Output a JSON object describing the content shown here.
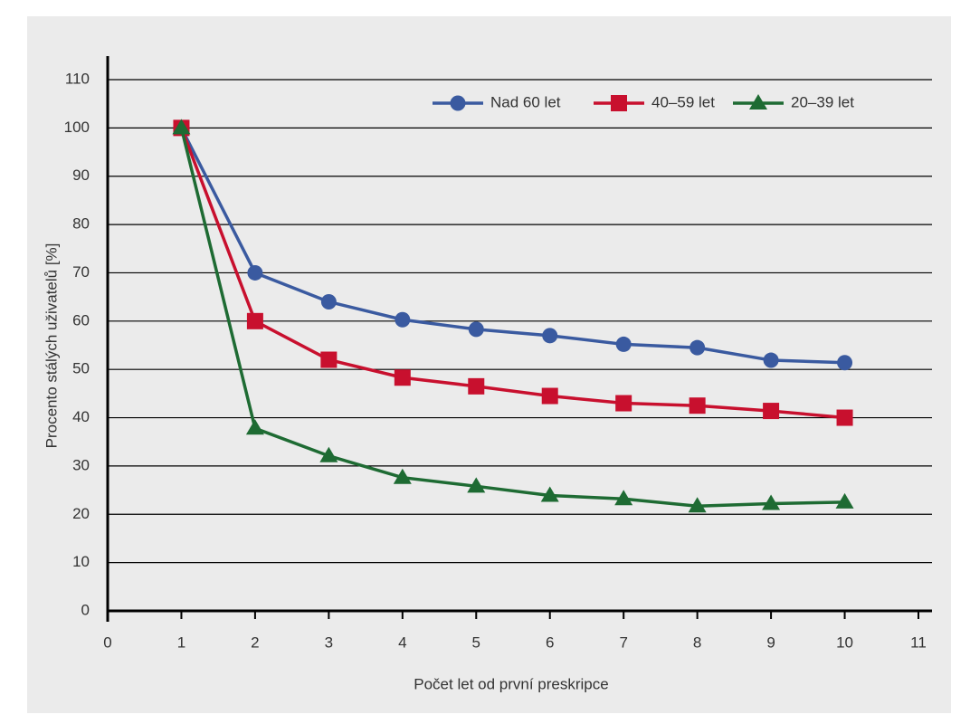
{
  "chart_data": {
    "type": "line",
    "y_label": "Procento stálých uživatelů [%]",
    "x_label": "Počet let od první preskripce",
    "x": [
      1,
      2,
      3,
      4,
      5,
      6,
      7,
      8,
      9,
      10
    ],
    "series": [
      {
        "name": "Nad 60 let",
        "color": "#3a5aa0",
        "marker": "circle",
        "values": [
          100,
          70,
          64,
          60.3,
          58.3,
          57,
          55.2,
          54.5,
          51.9,
          51.4
        ]
      },
      {
        "name": "40–59 let",
        "color": "#c8102e",
        "marker": "square",
        "values": [
          100,
          60,
          52,
          48.3,
          46.5,
          44.5,
          43,
          42.5,
          41.4,
          40
        ]
      },
      {
        "name": "20–39 let",
        "color": "#1e6b33",
        "marker": "triangle",
        "values": [
          100,
          37.8,
          32.1,
          27.6,
          25.8,
          23.9,
          23.2,
          21.7,
          22.2,
          22.5
        ]
      }
    ],
    "xlim": [
      0,
      11
    ],
    "xticks": [
      0,
      1,
      2,
      3,
      4,
      5,
      6,
      7,
      8,
      9,
      10,
      11
    ],
    "ylim": [
      0,
      110
    ],
    "yticks": [
      0,
      10,
      20,
      30,
      40,
      50,
      60,
      70,
      80,
      90,
      100,
      110
    ],
    "grid": true,
    "legend": "top-right"
  }
}
